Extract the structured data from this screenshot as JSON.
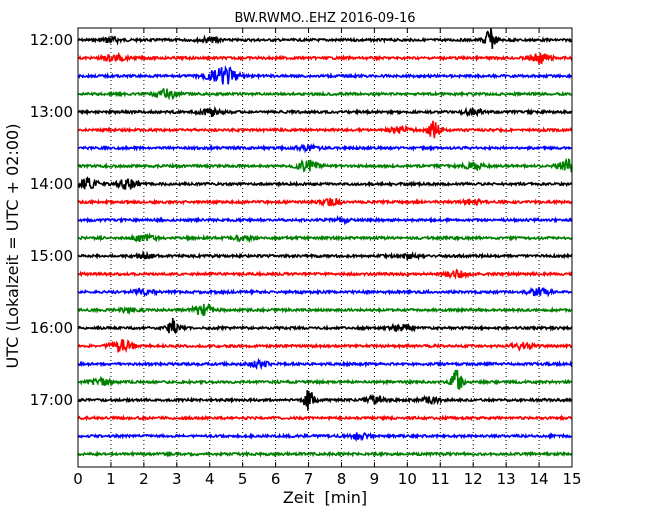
{
  "chart_data": {
    "type": "line",
    "title": "BW.RWMO..EHZ 2016-09-16",
    "xlabel": "Zeit  [min]",
    "ylabel": "UTC (Lokalzeit = UTC + 02:00)",
    "xlim": [
      0,
      15
    ],
    "x_ticks": [
      "0",
      "1",
      "2",
      "3",
      "4",
      "5",
      "6",
      "7",
      "8",
      "9",
      "10",
      "11",
      "12",
      "13",
      "14",
      "15"
    ],
    "y_tick_labels": [
      "12:00",
      "13:00",
      "14:00",
      "15:00",
      "16:00",
      "17:00"
    ],
    "grid": "vertical dotted lines at each minute",
    "trace_colors": [
      "#000000",
      "#ff0000",
      "#0000ff",
      "#008000"
    ],
    "traces": [
      {
        "start": "12:00",
        "events": [
          {
            "minute": 12.5,
            "amp": 1.0
          },
          {
            "minute": 1.0,
            "amp": 0.25
          },
          {
            "minute": 4.0,
            "amp": 0.2
          }
        ]
      },
      {
        "start": "12:15",
        "events": [
          {
            "minute": 14.0,
            "amp": 0.45
          },
          {
            "minute": 1.1,
            "amp": 0.3
          }
        ]
      },
      {
        "start": "12:30",
        "events": [
          {
            "minute": 4.5,
            "amp": 0.75
          },
          {
            "minute": 4.0,
            "amp": 0.35
          }
        ]
      },
      {
        "start": "12:45",
        "events": [
          {
            "minute": 2.7,
            "amp": 0.45
          }
        ]
      },
      {
        "start": "13:00",
        "events": [
          {
            "minute": 4.0,
            "amp": 0.3
          },
          {
            "minute": 12.0,
            "amp": 0.25
          }
        ]
      },
      {
        "start": "13:15",
        "events": [
          {
            "minute": 10.8,
            "amp": 1.0
          },
          {
            "minute": 9.8,
            "amp": 0.3
          }
        ]
      },
      {
        "start": "13:30",
        "events": [
          {
            "minute": 7.0,
            "amp": 0.2
          }
        ]
      },
      {
        "start": "13:45",
        "events": [
          {
            "minute": 7.0,
            "amp": 0.55
          },
          {
            "minute": 14.9,
            "amp": 0.55
          },
          {
            "minute": 12.0,
            "amp": 0.3
          }
        ]
      },
      {
        "start": "14:00",
        "events": [
          {
            "minute": 0.3,
            "amp": 0.5
          },
          {
            "minute": 1.5,
            "amp": 0.45
          }
        ]
      },
      {
        "start": "14:15",
        "events": [
          {
            "minute": 7.7,
            "amp": 0.3
          },
          {
            "minute": 12.0,
            "amp": 0.2
          }
        ]
      },
      {
        "start": "14:30",
        "events": [
          {
            "minute": 8.0,
            "amp": 0.15
          }
        ]
      },
      {
        "start": "14:45",
        "events": [
          {
            "minute": 2.0,
            "amp": 0.25
          },
          {
            "minute": 5.0,
            "amp": 0.25
          }
        ]
      },
      {
        "start": "15:00",
        "events": [
          {
            "minute": 10.0,
            "amp": 0.25
          },
          {
            "minute": 2.0,
            "amp": 0.2
          }
        ]
      },
      {
        "start": "15:15",
        "events": [
          {
            "minute": 11.5,
            "amp": 0.3
          }
        ]
      },
      {
        "start": "15:30",
        "events": [
          {
            "minute": 14.0,
            "amp": 0.35
          },
          {
            "minute": 2.0,
            "amp": 0.25
          }
        ]
      },
      {
        "start": "15:45",
        "events": [
          {
            "minute": 3.8,
            "amp": 0.5
          },
          {
            "minute": 1.5,
            "amp": 0.2
          }
        ]
      },
      {
        "start": "16:00",
        "events": [
          {
            "minute": 2.9,
            "amp": 0.85
          },
          {
            "minute": 9.8,
            "amp": 0.3
          }
        ]
      },
      {
        "start": "16:15",
        "events": [
          {
            "minute": 1.3,
            "amp": 0.6
          },
          {
            "minute": 13.5,
            "amp": 0.3
          }
        ]
      },
      {
        "start": "16:30",
        "events": [
          {
            "minute": 5.5,
            "amp": 0.25
          }
        ]
      },
      {
        "start": "16:45",
        "events": [
          {
            "minute": 11.5,
            "amp": 1.1
          },
          {
            "minute": 0.7,
            "amp": 0.3
          }
        ]
      },
      {
        "start": "17:00",
        "events": [
          {
            "minute": 7.0,
            "amp": 1.0
          },
          {
            "minute": 9.0,
            "amp": 0.3
          },
          {
            "minute": 10.7,
            "amp": 0.25
          }
        ]
      },
      {
        "start": "17:15",
        "events": []
      },
      {
        "start": "17:30",
        "events": [
          {
            "minute": 8.5,
            "amp": 0.25
          }
        ]
      },
      {
        "start": "17:45",
        "events": []
      }
    ]
  }
}
